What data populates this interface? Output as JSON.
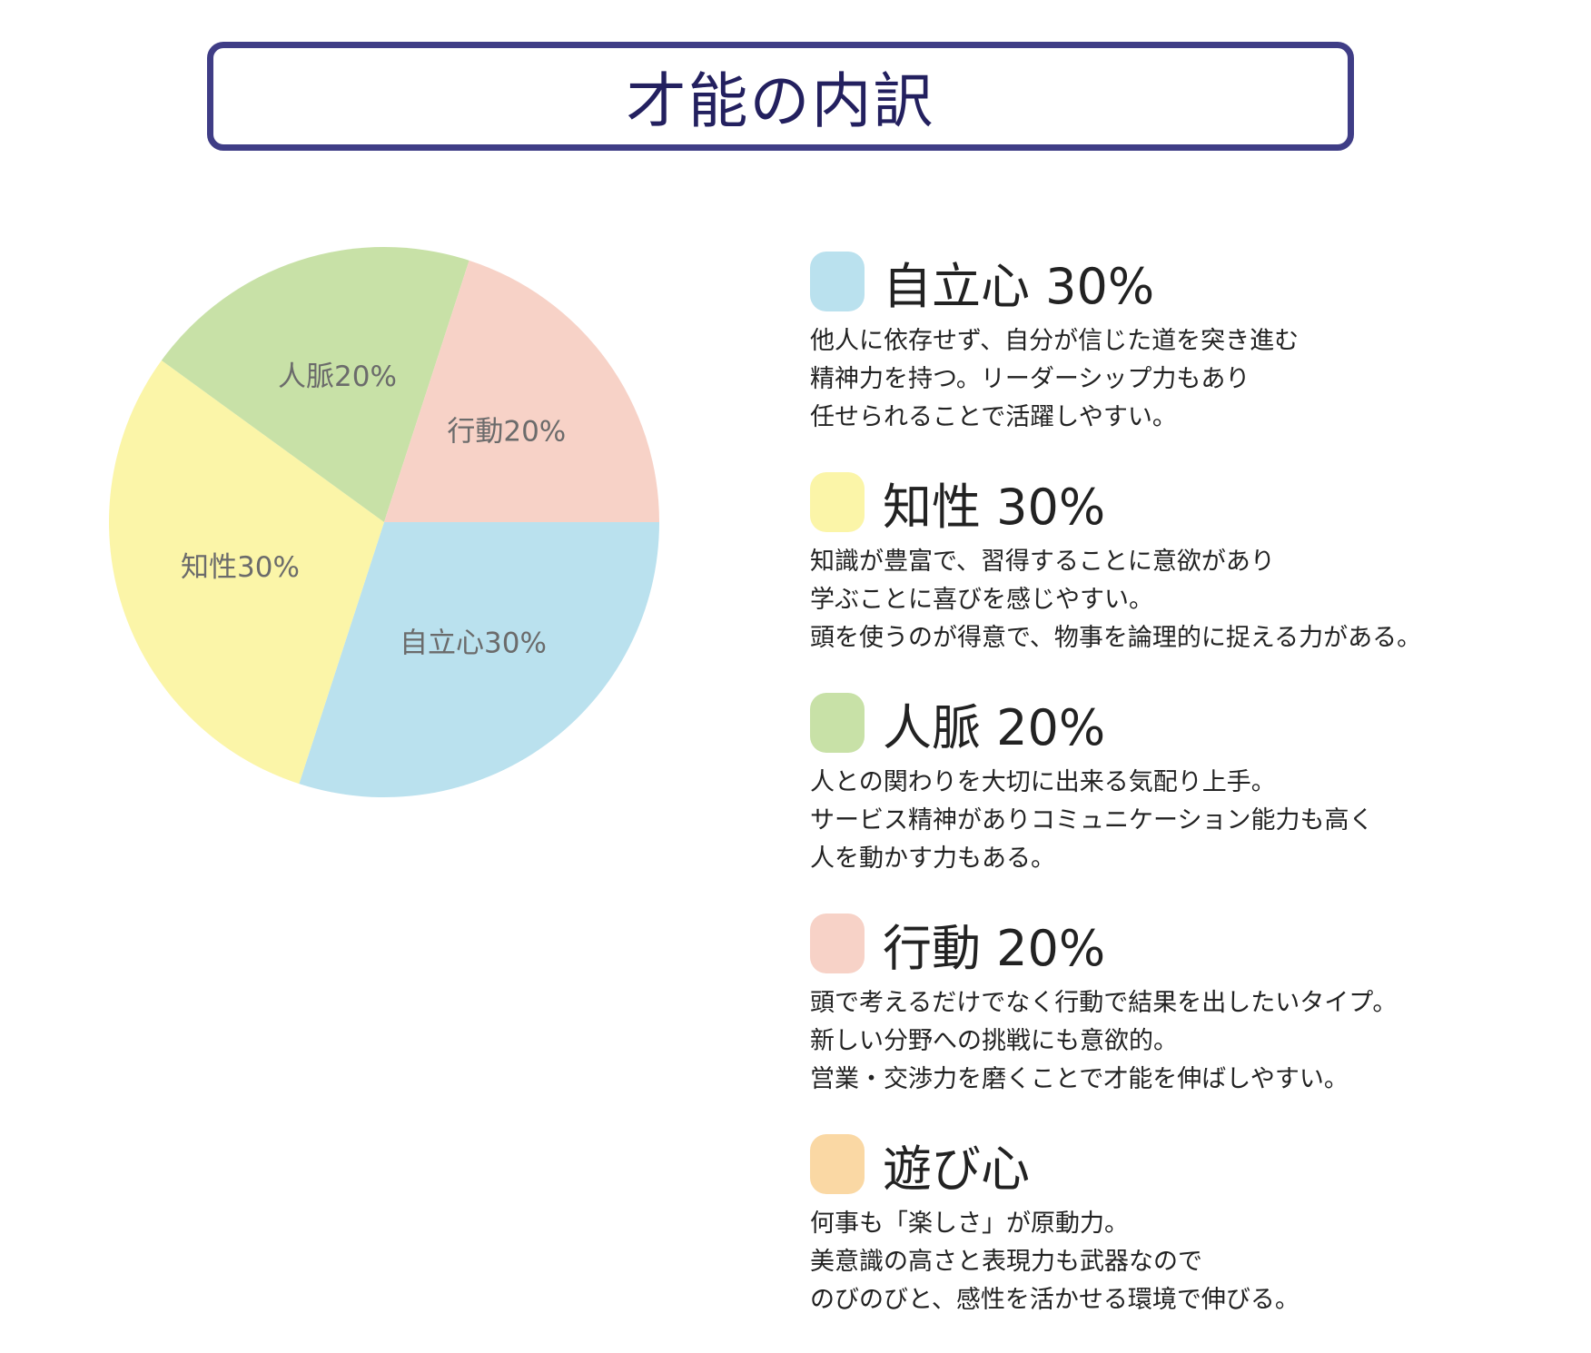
{
  "header": {
    "title": "才能の内訳"
  },
  "chart_data": {
    "type": "pie",
    "slices": [
      {
        "label": "自立心30%",
        "value": 30,
        "color": "#bae1ee"
      },
      {
        "label": "知性30%",
        "value": 30,
        "color": "#fbf5a8"
      },
      {
        "label": "人脈20%",
        "value": 20,
        "color": "#c8e1a7"
      },
      {
        "label": "行動20%",
        "value": 20,
        "color": "#f7d2c7"
      }
    ]
  },
  "legend": {
    "items": [
      {
        "title": "自立心 30%",
        "color": "#bae1ee",
        "lines": [
          "他人に依存せず、自分が信じた道を突き進む",
          "精神力を持つ。リーダーシップ力もあり",
          "任せられることで活躍しやすい。"
        ]
      },
      {
        "title": "知性 30%",
        "color": "#fbf5a8",
        "lines": [
          "知識が豊富で、習得することに意欲があり",
          "学ぶことに喜びを感じやすい。",
          "頭を使うのが得意で、物事を論理的に捉える力がある。"
        ]
      },
      {
        "title": "人脈 20%",
        "color": "#c8e1a7",
        "lines": [
          "人との関わりを大切に出来る気配り上手。",
          "サービス精神がありコミュニケーション能力も高く",
          "人を動かす力もある。"
        ]
      },
      {
        "title": "行動 20%",
        "color": "#f7d2c7",
        "lines": [
          "頭で考えるだけでなく行動で結果を出したいタイプ。",
          "新しい分野への挑戦にも意欲的。",
          "営業・交渉力を磨くことで才能を伸ばしやすい。"
        ]
      },
      {
        "title": "遊び心",
        "color": "#fad8a4",
        "lines": [
          "何事も「楽しさ」が原動力。",
          "美意識の高さと表現力も武器なので",
          "のびのびと、感性を活かせる環境で伸びる。"
        ]
      }
    ]
  }
}
